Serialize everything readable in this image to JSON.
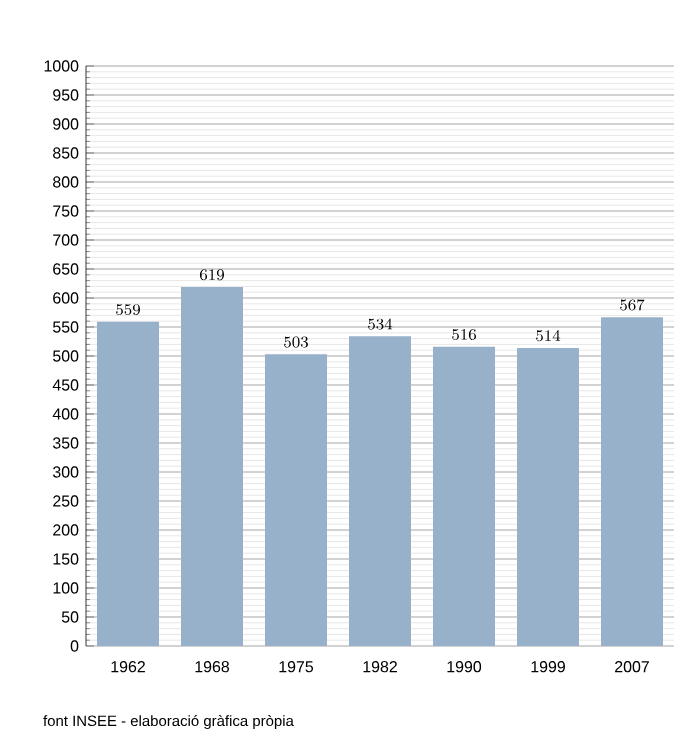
{
  "chart_data": {
    "type": "bar",
    "categories": [
      "1962",
      "1968",
      "1975",
      "1982",
      "1990",
      "1999",
      "2007"
    ],
    "values": [
      559,
      619,
      503,
      534,
      516,
      514,
      567
    ],
    "color": "#97b1cb",
    "ylim": [
      0,
      1000
    ],
    "yticks": [
      0,
      50,
      100,
      150,
      200,
      250,
      300,
      350,
      400,
      450,
      500,
      550,
      600,
      650,
      700,
      750,
      800,
      850,
      900,
      950,
      1000
    ],
    "grid": "y",
    "data_labels": true,
    "annotations": [
      "font INSEE - elaboració gràfica pròpia"
    ]
  }
}
